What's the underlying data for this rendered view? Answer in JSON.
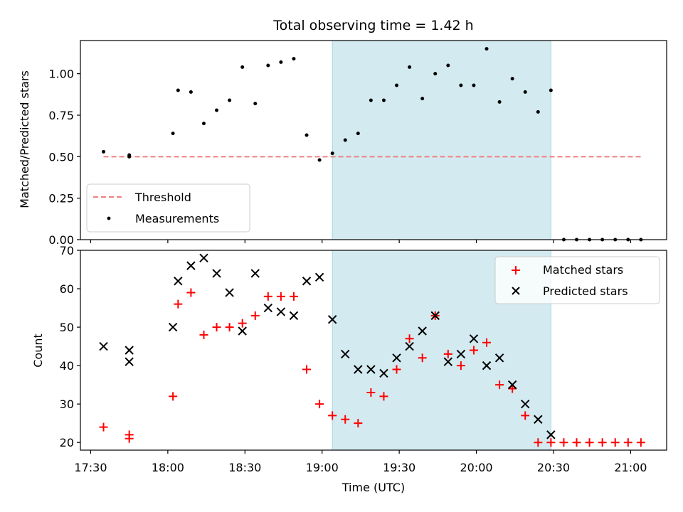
{
  "chart_data": [
    {
      "type": "scatter",
      "title": "Total observing time = 1.42 h",
      "xlabel": "",
      "ylabel": "Matched/Predicted stars",
      "xlim": [
        "17:26",
        "21:14"
      ],
      "ylim": [
        0,
        1.2
      ],
      "yticks": [
        "0.00",
        "0.25",
        "0.50",
        "0.75",
        "1.00"
      ],
      "grid": false,
      "legend_position": "lower-left",
      "shaded_span": {
        "start": "19:04",
        "end": "20:29",
        "color": "#d3eaf0"
      },
      "threshold": {
        "name": "Threshold",
        "value": 0.5,
        "x_start": "17:35",
        "x_end": "21:05",
        "color": "#f08080",
        "style": "dashed"
      },
      "series": [
        {
          "name": "Measurements",
          "marker": "dot",
          "color": "#000000",
          "points": [
            [
              "17:35",
              0.53
            ],
            [
              "17:45",
              0.5
            ],
            [
              "17:45",
              0.51
            ],
            [
              "18:02",
              0.64
            ],
            [
              "18:04",
              0.9
            ],
            [
              "18:09",
              0.89
            ],
            [
              "18:14",
              0.7
            ],
            [
              "18:19",
              0.78
            ],
            [
              "18:24",
              0.84
            ],
            [
              "18:29",
              1.04
            ],
            [
              "18:34",
              0.82
            ],
            [
              "18:39",
              1.05
            ],
            [
              "18:44",
              1.07
            ],
            [
              "18:49",
              1.09
            ],
            [
              "18:54",
              0.63
            ],
            [
              "18:59",
              0.48
            ],
            [
              "19:04",
              0.52
            ],
            [
              "19:09",
              0.6
            ],
            [
              "19:14",
              0.64
            ],
            [
              "19:19",
              0.84
            ],
            [
              "19:24",
              0.84
            ],
            [
              "19:29",
              0.93
            ],
            [
              "19:34",
              1.04
            ],
            [
              "19:39",
              0.85
            ],
            [
              "19:44",
              1.0
            ],
            [
              "19:49",
              1.05
            ],
            [
              "19:54",
              0.93
            ],
            [
              "19:59",
              0.93
            ],
            [
              "20:04",
              1.15
            ],
            [
              "20:09",
              0.83
            ],
            [
              "20:14",
              0.97
            ],
            [
              "20:19",
              0.89
            ],
            [
              "20:24",
              0.77
            ],
            [
              "20:29",
              0.9
            ],
            [
              "20:34",
              0.0
            ],
            [
              "20:39",
              0.0
            ],
            [
              "20:44",
              0.0
            ],
            [
              "20:49",
              0.0
            ],
            [
              "20:54",
              0.0
            ],
            [
              "20:59",
              0.0
            ],
            [
              "21:04",
              0.0
            ]
          ]
        }
      ]
    },
    {
      "type": "scatter",
      "title": "",
      "xlabel": "Time (UTC)",
      "ylabel": "Count",
      "xlim": [
        "17:26",
        "21:14"
      ],
      "ylim": [
        18,
        70
      ],
      "xticks": [
        "17:30",
        "18:00",
        "18:30",
        "19:00",
        "19:30",
        "20:00",
        "20:30",
        "21:00"
      ],
      "yticks": [
        "20",
        "30",
        "40",
        "50",
        "60",
        "70"
      ],
      "grid": false,
      "legend_position": "upper-right",
      "shaded_span": {
        "start": "19:04",
        "end": "20:29",
        "color": "#d3eaf0"
      },
      "series": [
        {
          "name": "Matched stars",
          "marker": "plus",
          "color": "#ff0000",
          "points": [
            [
              "17:35",
              24
            ],
            [
              "17:45",
              22
            ],
            [
              "17:45",
              21
            ],
            [
              "18:02",
              32
            ],
            [
              "18:04",
              56
            ],
            [
              "18:09",
              59
            ],
            [
              "18:14",
              48
            ],
            [
              "18:19",
              50
            ],
            [
              "18:24",
              50
            ],
            [
              "18:29",
              51
            ],
            [
              "18:34",
              53
            ],
            [
              "18:39",
              58
            ],
            [
              "18:44",
              58
            ],
            [
              "18:49",
              58
            ],
            [
              "18:54",
              39
            ],
            [
              "18:59",
              30
            ],
            [
              "19:04",
              27
            ],
            [
              "19:09",
              26
            ],
            [
              "19:14",
              25
            ],
            [
              "19:19",
              33
            ],
            [
              "19:24",
              32
            ],
            [
              "19:29",
              39
            ],
            [
              "19:34",
              47
            ],
            [
              "19:39",
              42
            ],
            [
              "19:44",
              53
            ],
            [
              "19:49",
              43
            ],
            [
              "19:54",
              40
            ],
            [
              "19:59",
              44
            ],
            [
              "20:04",
              46
            ],
            [
              "20:09",
              35
            ],
            [
              "20:14",
              34
            ],
            [
              "20:19",
              27
            ],
            [
              "20:24",
              20
            ],
            [
              "20:29",
              20
            ],
            [
              "20:34",
              20
            ],
            [
              "20:39",
              20
            ],
            [
              "20:44",
              20
            ],
            [
              "20:49",
              20
            ],
            [
              "20:54",
              20
            ],
            [
              "20:59",
              20
            ],
            [
              "21:04",
              20
            ]
          ]
        },
        {
          "name": "Predicted stars",
          "marker": "x",
          "color": "#000000",
          "points": [
            [
              "17:35",
              45
            ],
            [
              "17:45",
              44
            ],
            [
              "17:45",
              41
            ],
            [
              "18:02",
              50
            ],
            [
              "18:04",
              62
            ],
            [
              "18:09",
              66
            ],
            [
              "18:14",
              68
            ],
            [
              "18:19",
              64
            ],
            [
              "18:24",
              59
            ],
            [
              "18:29",
              49
            ],
            [
              "18:34",
              64
            ],
            [
              "18:39",
              55
            ],
            [
              "18:44",
              54
            ],
            [
              "18:49",
              53
            ],
            [
              "18:54",
              62
            ],
            [
              "18:59",
              63
            ],
            [
              "19:04",
              52
            ],
            [
              "19:09",
              43
            ],
            [
              "19:14",
              39
            ],
            [
              "19:19",
              39
            ],
            [
              "19:24",
              38
            ],
            [
              "19:29",
              42
            ],
            [
              "19:34",
              45
            ],
            [
              "19:39",
              49
            ],
            [
              "19:44",
              53
            ],
            [
              "19:49",
              41
            ],
            [
              "19:54",
              43
            ],
            [
              "19:59",
              47
            ],
            [
              "20:04",
              40
            ],
            [
              "20:09",
              42
            ],
            [
              "20:14",
              35
            ],
            [
              "20:19",
              30
            ],
            [
              "20:24",
              26
            ],
            [
              "20:29",
              22
            ]
          ]
        }
      ]
    }
  ]
}
